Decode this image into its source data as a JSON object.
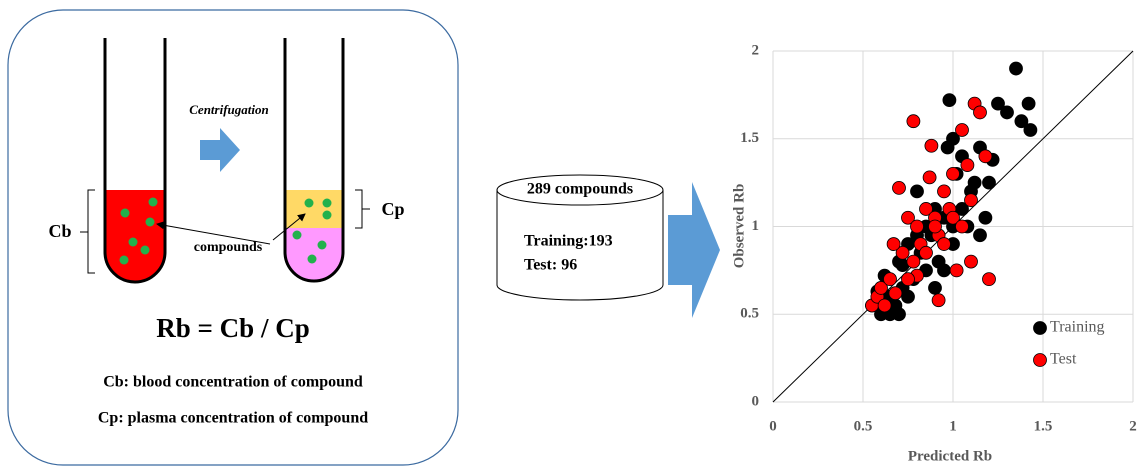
{
  "diagram": {
    "centrifugation": "Centrifugation",
    "cb": "Cb",
    "cp": "Cp",
    "compounds": "compounds",
    "formula": "Rb = Cb / Cp",
    "cb_def": "Cb: blood concentration of compound",
    "cp_def": "Cp: plasma concentration of compound",
    "db_title": "289 compounds",
    "db_training": "Training:193",
    "db_test": "Test: 96"
  },
  "chart_data": {
    "type": "scatter",
    "x_label": "Predicted Rb",
    "y_label": "Observed Rb",
    "xlim": [
      0,
      2
    ],
    "ylim": [
      0,
      2
    ],
    "xticks": [
      0,
      0.5,
      1,
      1.5,
      2
    ],
    "yticks": [
      0,
      0.5,
      1,
      1.5,
      2
    ],
    "grid": true,
    "legend": "lower right",
    "series": [
      {
        "name": "Training",
        "color": "#000000",
        "x": [
          0.55,
          0.6,
          0.62,
          0.65,
          0.68,
          0.7,
          0.72,
          0.75,
          0.78,
          0.8,
          0.82,
          0.85,
          0.88,
          0.9,
          0.92,
          0.95,
          0.97,
          1.0,
          1.0,
          1.02,
          1.05,
          1.08,
          1.1,
          1.12,
          1.15,
          1.18,
          1.2,
          1.22,
          1.25,
          1.35,
          1.38,
          1.42,
          1.43,
          1.3,
          0.98,
          0.85,
          0.75,
          0.65,
          0.7,
          0.95,
          1.0,
          0.9,
          0.8,
          1.05,
          1.15,
          0.6,
          0.58,
          0.72
        ],
        "y": [
          0.55,
          0.5,
          0.72,
          0.6,
          0.55,
          0.8,
          0.65,
          0.9,
          0.7,
          1.2,
          0.85,
          1.0,
          0.95,
          1.1,
          0.8,
          1.05,
          1.45,
          1.5,
          0.9,
          1.3,
          1.1,
          1.0,
          1.2,
          1.25,
          0.95,
          1.05,
          1.25,
          1.38,
          1.7,
          1.9,
          1.6,
          1.7,
          1.55,
          1.65,
          1.72,
          0.75,
          0.6,
          0.5,
          0.5,
          0.75,
          1.0,
          0.65,
          0.95,
          1.4,
          1.45,
          0.58,
          0.63,
          0.78
        ]
      },
      {
        "name": "Test",
        "color": "#ff0000",
        "x": [
          0.55,
          0.58,
          0.6,
          0.62,
          0.65,
          0.68,
          0.7,
          0.72,
          0.75,
          0.78,
          0.78,
          0.8,
          0.82,
          0.85,
          0.87,
          0.88,
          0.9,
          0.92,
          0.92,
          0.95,
          0.98,
          1.0,
          1.02,
          1.05,
          1.05,
          1.08,
          1.1,
          1.12,
          1.15,
          1.18,
          1.1,
          1.2,
          1.0,
          0.8,
          0.9,
          0.85,
          0.67,
          0.95,
          0.75
        ],
        "y": [
          0.55,
          0.6,
          0.65,
          0.55,
          0.7,
          0.62,
          1.22,
          0.85,
          1.05,
          0.8,
          1.6,
          1.0,
          0.9,
          1.1,
          1.28,
          1.46,
          1.05,
          0.95,
          0.58,
          1.2,
          1.1,
          1.05,
          0.75,
          1.0,
          1.55,
          1.35,
          1.15,
          1.7,
          1.65,
          1.4,
          0.8,
          0.7,
          1.3,
          0.72,
          1.0,
          0.85,
          0.9,
          0.9,
          0.7
        ]
      }
    ]
  }
}
